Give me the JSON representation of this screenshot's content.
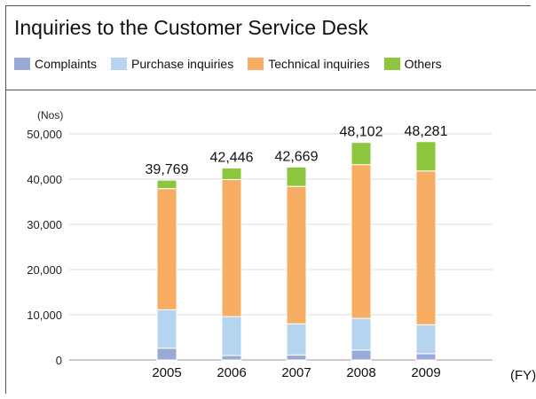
{
  "chart_data": {
    "type": "bar",
    "stacked": true,
    "title": "Inquiries to the Customer Service Desk",
    "ylabel": "(Nos)",
    "xlabel": "(FY)",
    "ylim": [
      0,
      50000
    ],
    "yticks": [
      "0",
      "10,000",
      "20,000",
      "30,000",
      "40,000",
      "50,000"
    ],
    "ytick_values": [
      0,
      10000,
      20000,
      30000,
      40000,
      50000
    ],
    "categories": [
      "2005",
      "2006",
      "2007",
      "2008",
      "2009"
    ],
    "totals": [
      "39,769",
      "42,446",
      "42,669",
      "48,102",
      "48,281"
    ],
    "series": [
      {
        "name": "Complaints",
        "color": "#9aaad6",
        "values": [
          2600,
          1000,
          1100,
          2200,
          1400
        ]
      },
      {
        "name": "Purchase inquiries",
        "color": "#b4d4f0",
        "values": [
          8500,
          8600,
          6900,
          7000,
          6400
        ]
      },
      {
        "name": "Technical inquiries",
        "color": "#f7ae62",
        "values": [
          26800,
          30300,
          30400,
          34000,
          34000
        ]
      },
      {
        "name": "Others",
        "color": "#8cc63f",
        "values": [
          1869,
          2546,
          4269,
          4902,
          6481
        ]
      }
    ],
    "grid": true,
    "legend": "top"
  }
}
